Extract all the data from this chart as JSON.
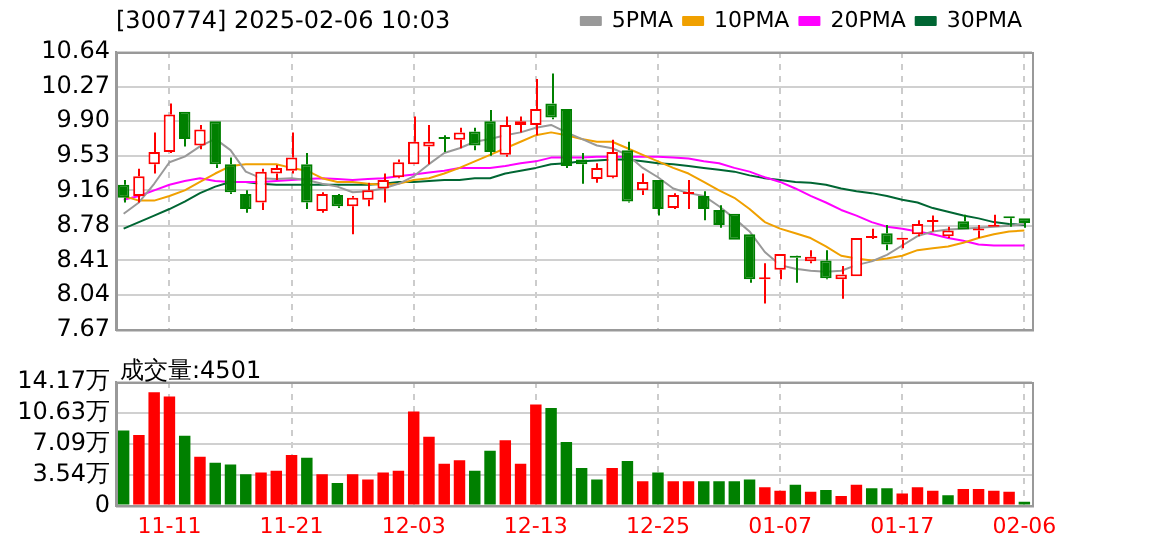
{
  "chart_data": [
    {
      "type": "candlestick",
      "title": "[300774] 2025-02-06 10:03",
      "categories": [
        null,
        null,
        null,
        null,
        null,
        null,
        null,
        null,
        null,
        null,
        null,
        null,
        null,
        null,
        null,
        null,
        null,
        null,
        null,
        null,
        null,
        null,
        null,
        null,
        null,
        null,
        null,
        null,
        null,
        null,
        null,
        null,
        null,
        null,
        null,
        null,
        null,
        null,
        null,
        null,
        null,
        null,
        null,
        null,
        null,
        null,
        null,
        null,
        null,
        null,
        null,
        null,
        null,
        null,
        null,
        null,
        null,
        null,
        null,
        null
      ],
      "ohlc": [
        [
          9.22,
          9.27,
          9.03,
          9.08
        ],
        [
          9.1,
          9.39,
          9.03,
          9.31
        ],
        [
          9.44,
          9.78,
          9.34,
          9.57
        ],
        [
          9.57,
          10.09,
          9.56,
          9.97
        ],
        [
          10.0,
          10.0,
          9.63,
          9.71
        ],
        [
          9.64,
          9.86,
          9.6,
          9.81
        ],
        [
          9.9,
          9.9,
          9.4,
          9.44
        ],
        [
          9.44,
          9.51,
          9.12,
          9.14
        ],
        [
          9.12,
          9.16,
          8.92,
          8.96
        ],
        [
          9.03,
          9.39,
          8.95,
          9.36
        ],
        [
          9.34,
          9.43,
          9.27,
          9.4
        ],
        [
          9.37,
          9.78,
          9.34,
          9.51
        ],
        [
          9.44,
          9.56,
          8.96,
          9.03
        ],
        [
          8.94,
          9.14,
          8.92,
          9.12
        ],
        [
          9.11,
          9.12,
          8.97,
          8.99
        ],
        [
          8.99,
          9.1,
          8.69,
          9.08
        ],
        [
          9.06,
          9.24,
          8.99,
          9.16
        ],
        [
          9.18,
          9.34,
          9.03,
          9.27
        ],
        [
          9.3,
          9.49,
          9.29,
          9.46
        ],
        [
          9.44,
          9.95,
          9.44,
          9.68
        ],
        [
          9.63,
          9.86,
          9.44,
          9.68
        ],
        [
          9.73,
          9.75,
          9.57,
          9.71
        ],
        [
          9.7,
          9.83,
          9.61,
          9.78
        ],
        [
          9.79,
          9.83,
          9.59,
          9.64
        ],
        [
          9.9,
          10.02,
          9.53,
          9.57
        ],
        [
          9.54,
          9.95,
          9.52,
          9.86
        ],
        [
          9.86,
          9.95,
          9.78,
          9.9
        ],
        [
          9.86,
          10.35,
          9.75,
          10.03
        ],
        [
          10.09,
          10.41,
          9.92,
          9.94
        ],
        [
          10.03,
          10.03,
          9.4,
          9.42
        ],
        [
          9.49,
          9.56,
          9.23,
          9.44
        ],
        [
          9.28,
          9.45,
          9.24,
          9.4
        ],
        [
          9.3,
          9.7,
          9.29,
          9.57
        ],
        [
          9.59,
          9.68,
          9.03,
          9.04
        ],
        [
          9.16,
          9.34,
          9.11,
          9.25
        ],
        [
          9.27,
          9.27,
          8.89,
          8.96
        ],
        [
          8.97,
          9.13,
          8.96,
          9.11
        ],
        [
          9.12,
          9.27,
          8.96,
          9.13
        ],
        [
          9.1,
          9.15,
          8.84,
          8.96
        ],
        [
          8.95,
          9.0,
          8.76,
          8.79
        ],
        [
          8.91,
          8.91,
          8.63,
          8.63
        ],
        [
          8.69,
          8.69,
          8.17,
          8.21
        ],
        [
          8.21,
          8.38,
          7.95,
          8.22
        ],
        [
          8.31,
          8.48,
          8.21,
          8.48
        ],
        [
          8.45,
          8.46,
          8.17,
          8.44
        ],
        [
          8.4,
          8.52,
          8.38,
          8.45
        ],
        [
          8.41,
          8.52,
          8.21,
          8.22
        ],
        [
          8.21,
          8.35,
          8.0,
          8.26
        ],
        [
          8.24,
          8.65,
          8.24,
          8.65
        ],
        [
          8.65,
          8.75,
          8.64,
          8.66
        ],
        [
          8.7,
          8.79,
          8.52,
          8.58
        ],
        [
          8.63,
          8.65,
          8.54,
          8.64
        ],
        [
          8.69,
          8.84,
          8.67,
          8.8
        ],
        [
          8.82,
          8.89,
          8.72,
          8.83
        ],
        [
          8.67,
          8.77,
          8.65,
          8.73
        ],
        [
          8.83,
          8.9,
          8.74,
          8.74
        ],
        [
          8.73,
          8.79,
          8.65,
          8.74
        ],
        [
          8.77,
          8.9,
          8.77,
          8.79
        ],
        [
          8.88,
          8.88,
          8.77,
          8.86
        ],
        [
          8.86,
          8.86,
          8.76,
          8.81
        ]
      ],
      "colors": [
        "#008000",
        "#ff0000",
        "#ff0000",
        "#ff0000",
        "#008000",
        "#ff0000",
        "#008000",
        "#008000",
        "#008000",
        "#ff0000",
        "#ff0000",
        "#ff0000",
        "#008000",
        "#ff0000",
        "#008000",
        "#ff0000",
        "#ff0000",
        "#ff0000",
        "#ff0000",
        "#ff0000",
        "#ff0000",
        "#008000",
        "#ff0000",
        "#008000",
        "#008000",
        "#ff0000",
        "#ff0000",
        "#ff0000",
        "#008000",
        "#008000",
        "#008000",
        "#ff0000",
        "#ff0000",
        "#008000",
        "#ff0000",
        "#008000",
        "#ff0000",
        "#ff0000",
        "#008000",
        "#008000",
        "#008000",
        "#008000",
        "#ff0000",
        "#ff0000",
        "#008000",
        "#ff0000",
        "#008000",
        "#ff0000",
        "#ff0000",
        "#ff0000",
        "#008000",
        "#ff0000",
        "#ff0000",
        "#ff0000",
        "#ff0000",
        "#008000",
        "#ff0000",
        "#ff0000",
        "#008000",
        "#008000"
      ],
      "series": [
        {
          "type": "line",
          "name": "5PMA",
          "color": "#999999",
          "values": [
            8.91,
            9.03,
            9.23,
            9.46,
            9.52,
            9.63,
            9.71,
            9.59,
            9.36,
            9.29,
            9.28,
            9.29,
            9.27,
            9.23,
            9.2,
            9.14,
            9.15,
            9.18,
            9.23,
            9.31,
            9.44,
            9.56,
            9.61,
            9.68,
            9.71,
            9.75,
            9.78,
            9.83,
            9.86,
            9.78,
            9.71,
            9.64,
            9.61,
            9.54,
            9.4,
            9.3,
            9.18,
            9.13,
            9.1,
            8.99,
            8.86,
            8.72,
            8.5,
            8.36,
            8.32,
            8.3,
            8.29,
            8.3,
            8.36,
            8.4,
            8.47,
            8.57,
            8.67,
            8.72,
            8.74,
            8.75,
            8.76,
            8.77,
            8.78,
            8.8
          ]
        },
        {
          "type": "line",
          "name": "10PMA",
          "color": "#f0a000",
          "values": [
            9.1,
            9.05,
            9.05,
            9.1,
            9.16,
            9.25,
            9.34,
            9.42,
            9.44,
            9.44,
            9.44,
            9.4,
            9.37,
            9.29,
            9.25,
            9.25,
            9.23,
            9.22,
            9.23,
            9.27,
            9.29,
            9.34,
            9.4,
            9.47,
            9.54,
            9.61,
            9.68,
            9.75,
            9.78,
            9.75,
            9.71,
            9.68,
            9.68,
            9.61,
            9.54,
            9.47,
            9.4,
            9.34,
            9.25,
            9.16,
            9.08,
            8.96,
            8.82,
            8.75,
            8.7,
            8.65,
            8.56,
            8.46,
            8.43,
            8.41,
            8.43,
            8.46,
            8.52,
            8.54,
            8.56,
            8.6,
            8.65,
            8.69,
            8.72,
            8.73
          ]
        },
        {
          "type": "line",
          "name": "20PMA",
          "color": "#ff00ff",
          "values": [
            9.06,
            9.1,
            9.16,
            9.22,
            9.26,
            9.29,
            9.26,
            9.25,
            9.25,
            9.25,
            9.26,
            9.27,
            9.28,
            9.29,
            9.28,
            9.27,
            9.28,
            9.29,
            9.31,
            9.33,
            9.35,
            9.37,
            9.4,
            9.4,
            9.4,
            9.42,
            9.45,
            9.47,
            9.51,
            9.51,
            9.51,
            9.52,
            9.52,
            9.52,
            9.52,
            9.52,
            9.51,
            9.5,
            9.47,
            9.45,
            9.4,
            9.36,
            9.3,
            9.25,
            9.18,
            9.1,
            9.03,
            8.95,
            8.89,
            8.82,
            8.77,
            8.75,
            8.72,
            8.69,
            8.65,
            8.62,
            8.58,
            8.57,
            8.57,
            8.57
          ]
        },
        {
          "type": "line",
          "name": "30PMA",
          "color": "#006633",
          "values": [
            8.75,
            8.82,
            8.89,
            8.96,
            9.04,
            9.13,
            9.2,
            9.25,
            9.25,
            9.23,
            9.22,
            9.22,
            9.22,
            9.22,
            9.22,
            9.22,
            9.22,
            9.23,
            9.25,
            9.25,
            9.26,
            9.27,
            9.27,
            9.29,
            9.29,
            9.34,
            9.37,
            9.4,
            9.44,
            9.45,
            9.47,
            9.48,
            9.49,
            9.49,
            9.47,
            9.45,
            9.44,
            9.42,
            9.4,
            9.38,
            9.36,
            9.32,
            9.29,
            9.27,
            9.25,
            9.24,
            9.22,
            9.18,
            9.15,
            9.13,
            9.1,
            9.06,
            9.03,
            8.97,
            8.93,
            8.89,
            8.86,
            8.82,
            8.8,
            8.79
          ]
        }
      ],
      "ylim": [
        7.67,
        10.64
      ],
      "yticks": [
        7.67,
        8.04,
        8.41,
        8.78,
        9.16,
        9.53,
        {
          "value": 9.9,
          "label": "9.90"
        },
        10.27,
        10.64
      ],
      "grid": true,
      "legend": "top right",
      "tick_labels": "y"
    },
    {
      "type": "bar",
      "annotations": [
        "成交量:4501"
      ],
      "categories": [
        null,
        null,
        null,
        "11-11",
        null,
        null,
        null,
        null,
        null,
        null,
        null,
        "11-21",
        null,
        null,
        null,
        null,
        null,
        null,
        null,
        "12-03",
        null,
        null,
        null,
        null,
        null,
        null,
        null,
        "12-13",
        null,
        null,
        null,
        null,
        null,
        null,
        null,
        "12-25",
        null,
        null,
        null,
        null,
        null,
        null,
        null,
        "01-07",
        null,
        null,
        null,
        null,
        null,
        null,
        null,
        "01-17",
        null,
        null,
        null,
        null,
        null,
        null,
        null,
        "02-06"
      ],
      "values": [
        8.6,
        8.1,
        13.0,
        12.5,
        8.0,
        5.6,
        4.9,
        4.7,
        3.6,
        3.8,
        4.0,
        5.8,
        5.5,
        3.6,
        2.6,
        3.6,
        3.0,
        3.8,
        4.0,
        10.8,
        7.9,
        4.8,
        5.2,
        4.0,
        6.3,
        7.5,
        4.8,
        11.6,
        11.2,
        7.3,
        4.3,
        3.0,
        4.3,
        5.1,
        2.8,
        3.8,
        2.8,
        2.8,
        2.8,
        2.8,
        2.8,
        3.0,
        2.1,
        1.7,
        2.4,
        1.6,
        1.8,
        1.1,
        2.4,
        2.0,
        2.0,
        1.4,
        2.1,
        1.7,
        1.2,
        1.9,
        1.9,
        1.7,
        1.6,
        0.45
      ],
      "colors": [
        "#008000",
        "#ff0000",
        "#ff0000",
        "#ff0000",
        "#008000",
        "#ff0000",
        "#008000",
        "#008000",
        "#008000",
        "#ff0000",
        "#ff0000",
        "#ff0000",
        "#008000",
        "#ff0000",
        "#008000",
        "#ff0000",
        "#ff0000",
        "#ff0000",
        "#ff0000",
        "#ff0000",
        "#ff0000",
        "#ff0000",
        "#ff0000",
        "#008000",
        "#008000",
        "#ff0000",
        "#ff0000",
        "#ff0000",
        "#008000",
        "#008000",
        "#008000",
        "#008000",
        "#ff0000",
        "#008000",
        "#ff0000",
        "#008000",
        "#ff0000",
        "#ff0000",
        "#008000",
        "#008000",
        "#008000",
        "#008000",
        "#ff0000",
        "#ff0000",
        "#008000",
        "#ff0000",
        "#008000",
        "#ff0000",
        "#ff0000",
        "#008000",
        "#008000",
        "#ff0000",
        "#ff0000",
        "#ff0000",
        "#008000",
        "#ff0000",
        "#ff0000",
        "#ff0000",
        "#ff0000",
        "#008000"
      ],
      "ylim": [
        0,
        14.17
      ],
      "yticks": [
        0,
        {
          "value": 3.54,
          "label": "3.54万"
        },
        {
          "value": 7.09,
          "label": "7.09万"
        },
        {
          "value": 10.63,
          "label": "10.63万"
        },
        {
          "value": 14.17,
          "label": "14.17万"
        }
      ],
      "grid": true
    }
  ]
}
